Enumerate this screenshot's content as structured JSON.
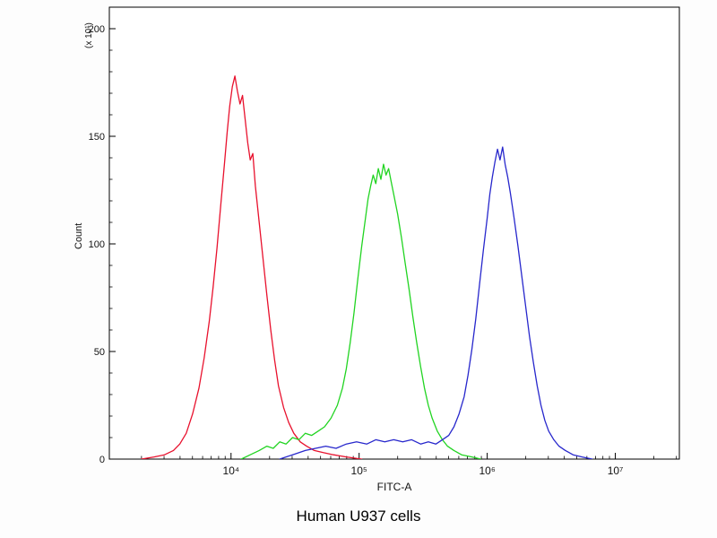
{
  "page": {
    "background": "#ffffff"
  },
  "chart_data": {
    "type": "line",
    "subtype": "flow-cytometry-histogram-overlay",
    "title": "Human U937 cells",
    "xlabel": "FITC-A",
    "ylabel": "Count",
    "y_multiplier_label": "(x 10¹)",
    "x_scale": "log",
    "xlim_log10": [
      3.05,
      7.5
    ],
    "ylim": [
      0,
      210
    ],
    "y_ticks": [
      0,
      50,
      100,
      150,
      200
    ],
    "y_minor_step": 10,
    "x_major_ticks_log10": [
      4,
      5,
      6,
      7
    ],
    "x_tick_labels": [
      "10⁴",
      "10⁵",
      "10⁶",
      "10⁷"
    ],
    "grid": false,
    "legend": "none",
    "frame_color": "#000000",
    "series": [
      {
        "name": "red-peak",
        "color": "#e8112d",
        "peak_x": 10000,
        "peak_count": 178,
        "points": [
          [
            3.3,
            0
          ],
          [
            3.4,
            1
          ],
          [
            3.48,
            2
          ],
          [
            3.55,
            4
          ],
          [
            3.6,
            7
          ],
          [
            3.65,
            12
          ],
          [
            3.7,
            21
          ],
          [
            3.75,
            33
          ],
          [
            3.79,
            47
          ],
          [
            3.83,
            64
          ],
          [
            3.86,
            80
          ],
          [
            3.89,
            98
          ],
          [
            3.92,
            118
          ],
          [
            3.95,
            138
          ],
          [
            3.97,
            152
          ],
          [
            3.99,
            164
          ],
          [
            4.01,
            173
          ],
          [
            4.03,
            178
          ],
          [
            4.05,
            171
          ],
          [
            4.07,
            165
          ],
          [
            4.09,
            169
          ],
          [
            4.11,
            158
          ],
          [
            4.13,
            147
          ],
          [
            4.15,
            139
          ],
          [
            4.17,
            142
          ],
          [
            4.19,
            127
          ],
          [
            4.22,
            110
          ],
          [
            4.25,
            93
          ],
          [
            4.28,
            76
          ],
          [
            4.31,
            60
          ],
          [
            4.34,
            46
          ],
          [
            4.37,
            34
          ],
          [
            4.41,
            24
          ],
          [
            4.45,
            17
          ],
          [
            4.49,
            12
          ],
          [
            4.54,
            8
          ],
          [
            4.59,
            6
          ],
          [
            4.65,
            4
          ],
          [
            4.72,
            3
          ],
          [
            4.8,
            2
          ],
          [
            4.9,
            1
          ],
          [
            5.02,
            0
          ]
        ]
      },
      {
        "name": "green-peak",
        "color": "#21d421",
        "peak_x": 150000,
        "peak_count": 137,
        "points": [
          [
            4.08,
            0
          ],
          [
            4.15,
            2
          ],
          [
            4.22,
            4
          ],
          [
            4.28,
            6
          ],
          [
            4.33,
            5
          ],
          [
            4.38,
            8
          ],
          [
            4.43,
            7
          ],
          [
            4.48,
            10
          ],
          [
            4.53,
            9
          ],
          [
            4.58,
            12
          ],
          [
            4.63,
            11
          ],
          [
            4.68,
            13
          ],
          [
            4.73,
            15
          ],
          [
            4.78,
            19
          ],
          [
            4.83,
            25
          ],
          [
            4.87,
            33
          ],
          [
            4.9,
            42
          ],
          [
            4.93,
            54
          ],
          [
            4.96,
            68
          ],
          [
            4.99,
            84
          ],
          [
            5.02,
            99
          ],
          [
            5.05,
            112
          ],
          [
            5.07,
            121
          ],
          [
            5.09,
            127
          ],
          [
            5.11,
            132
          ],
          [
            5.13,
            128
          ],
          [
            5.15,
            135
          ],
          [
            5.17,
            130
          ],
          [
            5.19,
            137
          ],
          [
            5.21,
            132
          ],
          [
            5.23,
            135
          ],
          [
            5.25,
            129
          ],
          [
            5.27,
            123
          ],
          [
            5.3,
            114
          ],
          [
            5.33,
            103
          ],
          [
            5.36,
            91
          ],
          [
            5.39,
            79
          ],
          [
            5.42,
            66
          ],
          [
            5.45,
            54
          ],
          [
            5.48,
            43
          ],
          [
            5.51,
            33
          ],
          [
            5.54,
            25
          ],
          [
            5.57,
            19
          ],
          [
            5.61,
            13
          ],
          [
            5.65,
            9
          ],
          [
            5.69,
            6
          ],
          [
            5.74,
            4
          ],
          [
            5.8,
            2
          ],
          [
            5.88,
            1
          ],
          [
            5.95,
            0
          ]
        ]
      },
      {
        "name": "blue-peak",
        "color": "#2727cc",
        "peak_x": 1000000,
        "peak_count": 145,
        "points": [
          [
            4.38,
            0
          ],
          [
            4.48,
            2
          ],
          [
            4.58,
            4
          ],
          [
            4.66,
            5
          ],
          [
            4.74,
            6
          ],
          [
            4.82,
            5
          ],
          [
            4.9,
            7
          ],
          [
            4.98,
            8
          ],
          [
            5.06,
            7
          ],
          [
            5.13,
            9
          ],
          [
            5.2,
            8
          ],
          [
            5.27,
            9
          ],
          [
            5.34,
            8
          ],
          [
            5.41,
            9
          ],
          [
            5.48,
            7
          ],
          [
            5.54,
            8
          ],
          [
            5.6,
            7
          ],
          [
            5.65,
            9
          ],
          [
            5.7,
            11
          ],
          [
            5.74,
            15
          ],
          [
            5.78,
            21
          ],
          [
            5.82,
            29
          ],
          [
            5.85,
            39
          ],
          [
            5.88,
            51
          ],
          [
            5.91,
            65
          ],
          [
            5.94,
            81
          ],
          [
            5.97,
            97
          ],
          [
            6.0,
            112
          ],
          [
            6.02,
            123
          ],
          [
            6.04,
            131
          ],
          [
            6.06,
            138
          ],
          [
            6.08,
            144
          ],
          [
            6.1,
            139
          ],
          [
            6.12,
            145
          ],
          [
            6.14,
            137
          ],
          [
            6.16,
            131
          ],
          [
            6.18,
            124
          ],
          [
            6.21,
            112
          ],
          [
            6.24,
            99
          ],
          [
            6.27,
            85
          ],
          [
            6.3,
            71
          ],
          [
            6.33,
            57
          ],
          [
            6.36,
            45
          ],
          [
            6.39,
            34
          ],
          [
            6.42,
            25
          ],
          [
            6.45,
            18
          ],
          [
            6.48,
            13
          ],
          [
            6.52,
            9
          ],
          [
            6.56,
            6
          ],
          [
            6.61,
            4
          ],
          [
            6.67,
            2
          ],
          [
            6.74,
            1
          ],
          [
            6.82,
            0
          ]
        ]
      }
    ]
  }
}
